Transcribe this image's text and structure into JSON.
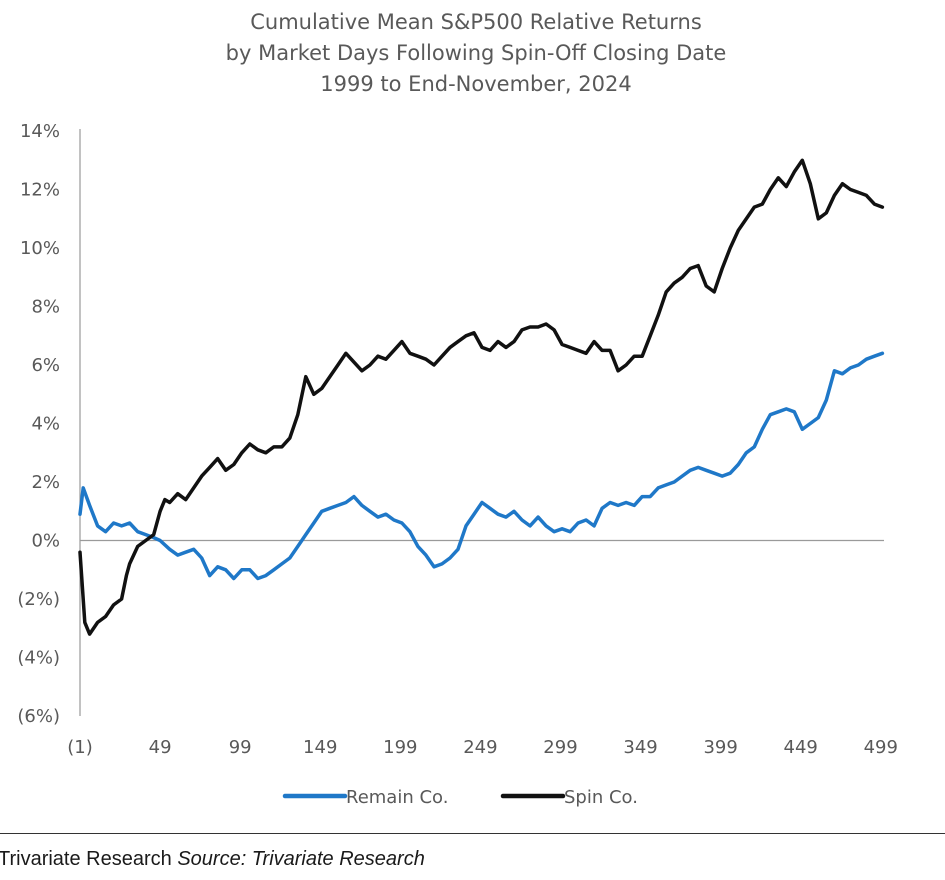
{
  "chart_data": {
    "type": "line",
    "title": [
      "Cumulative Mean S&P500 Relative Returns",
      "by Market Days Following Spin-Off Closing Date",
      "1999 to End-November, 2024"
    ],
    "xlabel": "",
    "ylabel": "",
    "xlim": [
      -1,
      501
    ],
    "ylim": [
      -6,
      14
    ],
    "x_ticks": [
      -1,
      49,
      99,
      149,
      199,
      249,
      299,
      349,
      399,
      449,
      499
    ],
    "x_tick_labels": [
      "(1)",
      "49",
      "99",
      "149",
      "199",
      "249",
      "299",
      "349",
      "399",
      "449",
      "499"
    ],
    "y_ticks": [
      14,
      12,
      10,
      8,
      6,
      4,
      2,
      0,
      -2,
      -4,
      -6
    ],
    "y_tick_labels": [
      "14%",
      "12%",
      "10%",
      "8%",
      "6%",
      "4%",
      "2%",
      "0%",
      "(2%)",
      "(4%)",
      "(6%)"
    ],
    "grid": false,
    "zero_line": true,
    "legend_position": "bottom-center",
    "series": [
      {
        "name": "Remain Co.",
        "color": "#1f78c8",
        "points": [
          [
            -1,
            0.9
          ],
          [
            1,
            1.8
          ],
          [
            5,
            1.2
          ],
          [
            10,
            0.5
          ],
          [
            15,
            0.3
          ],
          [
            20,
            0.6
          ],
          [
            25,
            0.5
          ],
          [
            30,
            0.6
          ],
          [
            35,
            0.3
          ],
          [
            40,
            0.2
          ],
          [
            45,
            0.1
          ],
          [
            49,
            0.0
          ],
          [
            55,
            -0.3
          ],
          [
            60,
            -0.5
          ],
          [
            65,
            -0.4
          ],
          [
            70,
            -0.3
          ],
          [
            75,
            -0.6
          ],
          [
            80,
            -1.2
          ],
          [
            85,
            -0.9
          ],
          [
            90,
            -1.0
          ],
          [
            95,
            -1.3
          ],
          [
            100,
            -1.0
          ],
          [
            105,
            -1.0
          ],
          [
            110,
            -1.3
          ],
          [
            115,
            -1.2
          ],
          [
            120,
            -1.0
          ],
          [
            125,
            -0.8
          ],
          [
            130,
            -0.6
          ],
          [
            135,
            -0.2
          ],
          [
            140,
            0.2
          ],
          [
            145,
            0.6
          ],
          [
            150,
            1.0
          ],
          [
            155,
            1.1
          ],
          [
            160,
            1.2
          ],
          [
            165,
            1.3
          ],
          [
            170,
            1.5
          ],
          [
            175,
            1.2
          ],
          [
            180,
            1.0
          ],
          [
            185,
            0.8
          ],
          [
            190,
            0.9
          ],
          [
            195,
            0.7
          ],
          [
            200,
            0.6
          ],
          [
            205,
            0.3
          ],
          [
            210,
            -0.2
          ],
          [
            215,
            -0.5
          ],
          [
            220,
            -0.9
          ],
          [
            225,
            -0.8
          ],
          [
            230,
            -0.6
          ],
          [
            235,
            -0.3
          ],
          [
            240,
            0.5
          ],
          [
            245,
            0.9
          ],
          [
            250,
            1.3
          ],
          [
            255,
            1.1
          ],
          [
            260,
            0.9
          ],
          [
            265,
            0.8
          ],
          [
            270,
            1.0
          ],
          [
            275,
            0.7
          ],
          [
            280,
            0.5
          ],
          [
            285,
            0.8
          ],
          [
            290,
            0.5
          ],
          [
            295,
            0.3
          ],
          [
            300,
            0.4
          ],
          [
            305,
            0.3
          ],
          [
            310,
            0.6
          ],
          [
            315,
            0.7
          ],
          [
            320,
            0.5
          ],
          [
            325,
            1.1
          ],
          [
            330,
            1.3
          ],
          [
            335,
            1.2
          ],
          [
            340,
            1.3
          ],
          [
            345,
            1.2
          ],
          [
            350,
            1.5
          ],
          [
            355,
            1.5
          ],
          [
            360,
            1.8
          ],
          [
            365,
            1.9
          ],
          [
            370,
            2.0
          ],
          [
            375,
            2.2
          ],
          [
            380,
            2.4
          ],
          [
            385,
            2.5
          ],
          [
            390,
            2.4
          ],
          [
            395,
            2.3
          ],
          [
            400,
            2.2
          ],
          [
            405,
            2.3
          ],
          [
            410,
            2.6
          ],
          [
            415,
            3.0
          ],
          [
            420,
            3.2
          ],
          [
            425,
            3.8
          ],
          [
            430,
            4.3
          ],
          [
            435,
            4.4
          ],
          [
            440,
            4.5
          ],
          [
            445,
            4.4
          ],
          [
            450,
            3.8
          ],
          [
            455,
            4.0
          ],
          [
            460,
            4.2
          ],
          [
            465,
            4.8
          ],
          [
            470,
            5.8
          ],
          [
            475,
            5.7
          ],
          [
            480,
            5.9
          ],
          [
            485,
            6.0
          ],
          [
            490,
            6.2
          ],
          [
            495,
            6.3
          ],
          [
            500,
            6.4
          ]
        ]
      },
      {
        "name": "Spin Co.",
        "color": "#111111",
        "points": [
          [
            -1,
            -0.4
          ],
          [
            2,
            -2.8
          ],
          [
            5,
            -3.2
          ],
          [
            10,
            -2.8
          ],
          [
            15,
            -2.6
          ],
          [
            20,
            -2.2
          ],
          [
            25,
            -2.0
          ],
          [
            28,
            -1.2
          ],
          [
            30,
            -0.8
          ],
          [
            35,
            -0.2
          ],
          [
            40,
            0.0
          ],
          [
            45,
            0.2
          ],
          [
            49,
            1.0
          ],
          [
            52,
            1.4
          ],
          [
            55,
            1.3
          ],
          [
            60,
            1.6
          ],
          [
            65,
            1.4
          ],
          [
            70,
            1.8
          ],
          [
            75,
            2.2
          ],
          [
            80,
            2.5
          ],
          [
            85,
            2.8
          ],
          [
            90,
            2.4
          ],
          [
            95,
            2.6
          ],
          [
            100,
            3.0
          ],
          [
            105,
            3.3
          ],
          [
            110,
            3.1
          ],
          [
            115,
            3.0
          ],
          [
            120,
            3.2
          ],
          [
            125,
            3.2
          ],
          [
            130,
            3.5
          ],
          [
            135,
            4.3
          ],
          [
            140,
            5.6
          ],
          [
            145,
            5.0
          ],
          [
            150,
            5.2
          ],
          [
            155,
            5.6
          ],
          [
            160,
            6.0
          ],
          [
            165,
            6.4
          ],
          [
            170,
            6.1
          ],
          [
            175,
            5.8
          ],
          [
            180,
            6.0
          ],
          [
            185,
            6.3
          ],
          [
            190,
            6.2
          ],
          [
            195,
            6.5
          ],
          [
            200,
            6.8
          ],
          [
            205,
            6.4
          ],
          [
            210,
            6.3
          ],
          [
            215,
            6.2
          ],
          [
            220,
            6.0
          ],
          [
            225,
            6.3
          ],
          [
            230,
            6.6
          ],
          [
            235,
            6.8
          ],
          [
            240,
            7.0
          ],
          [
            245,
            7.1
          ],
          [
            250,
            6.6
          ],
          [
            255,
            6.5
          ],
          [
            260,
            6.8
          ],
          [
            265,
            6.6
          ],
          [
            270,
            6.8
          ],
          [
            275,
            7.2
          ],
          [
            280,
            7.3
          ],
          [
            285,
            7.3
          ],
          [
            290,
            7.4
          ],
          [
            295,
            7.2
          ],
          [
            300,
            6.7
          ],
          [
            305,
            6.6
          ],
          [
            310,
            6.5
          ],
          [
            315,
            6.4
          ],
          [
            320,
            6.8
          ],
          [
            325,
            6.5
          ],
          [
            330,
            6.5
          ],
          [
            335,
            5.8
          ],
          [
            340,
            6.0
          ],
          [
            345,
            6.3
          ],
          [
            350,
            6.3
          ],
          [
            355,
            7.0
          ],
          [
            360,
            7.7
          ],
          [
            365,
            8.5
          ],
          [
            370,
            8.8
          ],
          [
            375,
            9.0
          ],
          [
            380,
            9.3
          ],
          [
            385,
            9.4
          ],
          [
            390,
            8.7
          ],
          [
            395,
            8.5
          ],
          [
            400,
            9.3
          ],
          [
            405,
            10.0
          ],
          [
            410,
            10.6
          ],
          [
            415,
            11.0
          ],
          [
            420,
            11.4
          ],
          [
            425,
            11.5
          ],
          [
            430,
            12.0
          ],
          [
            435,
            12.4
          ],
          [
            440,
            12.1
          ],
          [
            445,
            12.6
          ],
          [
            450,
            13.0
          ],
          [
            455,
            12.2
          ],
          [
            460,
            11.0
          ],
          [
            465,
            11.2
          ],
          [
            470,
            11.8
          ],
          [
            475,
            12.2
          ],
          [
            480,
            12.0
          ],
          [
            485,
            11.9
          ],
          [
            490,
            11.8
          ],
          [
            495,
            11.5
          ],
          [
            500,
            11.4
          ]
        ]
      }
    ]
  },
  "footer": {
    "prefix": "Trivariate Research",
    "source": "Source: Trivariate Research"
  }
}
